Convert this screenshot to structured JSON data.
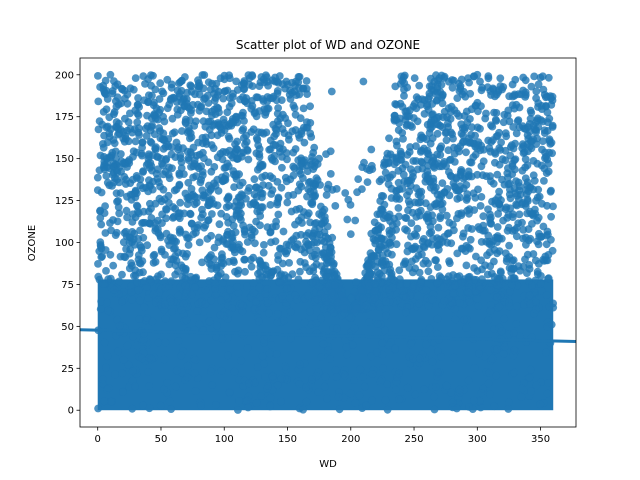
{
  "chart_data": {
    "type": "scatter",
    "title": "Scatter plot of WD and OZONE",
    "xlabel": "WD",
    "ylabel": "OZONE",
    "xlim": [
      -14,
      378
    ],
    "ylim": [
      -10,
      210
    ],
    "xticks": [
      0,
      50,
      100,
      150,
      200,
      250,
      300,
      350
    ],
    "yticks": [
      0,
      25,
      50,
      75,
      100,
      125,
      150,
      175,
      200
    ],
    "grid": false,
    "legend": "none",
    "marker_color": "#1f77b4",
    "fit_line_color": "#1f77b4",
    "fit_line": {
      "x": [
        -14,
        378
      ],
      "y": [
        48,
        41
      ]
    },
    "sample_points": [
      [
        10,
        200
      ],
      [
        30,
        198
      ],
      [
        55,
        197
      ],
      [
        80,
        195
      ],
      [
        120,
        198
      ],
      [
        140,
        196
      ],
      [
        185,
        190
      ],
      [
        210,
        196
      ],
      [
        240,
        199
      ],
      [
        270,
        198
      ],
      [
        300,
        200
      ],
      [
        330,
        197
      ],
      [
        345,
        199
      ],
      [
        175,
        150
      ],
      [
        205,
        130
      ],
      [
        200,
        105
      ],
      [
        185,
        70
      ],
      [
        200,
        55
      ],
      [
        225,
        40
      ],
      [
        180,
        20
      ],
      [
        200,
        10
      ],
      [
        165,
        5
      ]
    ]
  }
}
